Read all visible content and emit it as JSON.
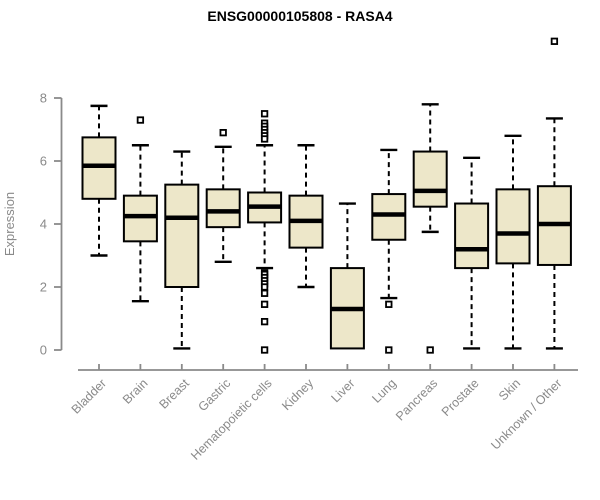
{
  "chart_data": {
    "type": "boxplot",
    "title": "ENSG00000105808 - RASA4",
    "xlabel": "",
    "ylabel": "Expression",
    "ylim": [
      0,
      8
    ],
    "yticks": [
      0,
      2,
      4,
      6,
      8
    ],
    "grid": false,
    "legend": "none",
    "colors": {
      "box_fill": "#EDE7C9",
      "box_stroke": "#000000",
      "median_color": "#000000",
      "whisker_color": "#000000",
      "axis_color": "#8a8a8a",
      "label_color": "#8a8a8a",
      "title_color": "#000000",
      "outlier_fill": "#ffffff",
      "outlier_stroke": "#000000"
    },
    "categories": [
      "Bladder",
      "Brain",
      "Breast",
      "Gastric",
      "Hematopoietic cells",
      "Kidney",
      "Liver",
      "Lung",
      "Pancreas",
      "Prostate",
      "Skin",
      "Unknown / Other"
    ],
    "series": [
      {
        "name": "Bladder",
        "low": 3.0,
        "q1": 4.8,
        "median": 5.85,
        "q3": 6.75,
        "high": 7.75,
        "outliers": []
      },
      {
        "name": "Brain",
        "low": 1.55,
        "q1": 3.45,
        "median": 4.25,
        "q3": 4.9,
        "high": 6.5,
        "outliers": [
          7.3
        ]
      },
      {
        "name": "Breast",
        "low": 0.05,
        "q1": 2.0,
        "median": 4.2,
        "q3": 5.25,
        "high": 6.3,
        "outliers": []
      },
      {
        "name": "Gastric",
        "low": 2.8,
        "q1": 3.9,
        "median": 4.4,
        "q3": 5.1,
        "high": 6.45,
        "outliers": [
          6.9
        ]
      },
      {
        "name": "Hematopoietic cells",
        "low": 2.6,
        "q1": 4.05,
        "median": 4.55,
        "q3": 5.0,
        "high": 6.5,
        "outliers": [
          7.5,
          7.2,
          7.1,
          7.0,
          6.9,
          6.8,
          6.7,
          2.45,
          2.4,
          2.3,
          2.2,
          2.1,
          2.0,
          1.8,
          1.45,
          0.9,
          0.0
        ]
      },
      {
        "name": "Kidney",
        "low": 2.0,
        "q1": 3.25,
        "median": 4.1,
        "q3": 4.9,
        "high": 6.5,
        "outliers": []
      },
      {
        "name": "Liver",
        "low": 0.05,
        "q1": 0.05,
        "median": 1.3,
        "q3": 2.6,
        "high": 4.65,
        "outliers": []
      },
      {
        "name": "Lung",
        "low": 1.65,
        "q1": 3.5,
        "median": 4.3,
        "q3": 4.95,
        "high": 6.35,
        "outliers": [
          1.45,
          0.0
        ]
      },
      {
        "name": "Pancreas",
        "low": 3.75,
        "q1": 4.55,
        "median": 5.05,
        "q3": 6.3,
        "high": 7.8,
        "outliers": [
          0.0
        ]
      },
      {
        "name": "Prostate",
        "low": 0.05,
        "q1": 2.6,
        "median": 3.2,
        "q3": 4.65,
        "high": 6.1,
        "outliers": []
      },
      {
        "name": "Skin",
        "low": 0.05,
        "q1": 2.75,
        "median": 3.7,
        "q3": 5.1,
        "high": 6.8,
        "outliers": []
      },
      {
        "name": "Unknown / Other",
        "low": 0.05,
        "q1": 2.7,
        "median": 4.0,
        "q3": 5.2,
        "high": 7.35,
        "outliers": [
          9.8
        ]
      }
    ]
  }
}
